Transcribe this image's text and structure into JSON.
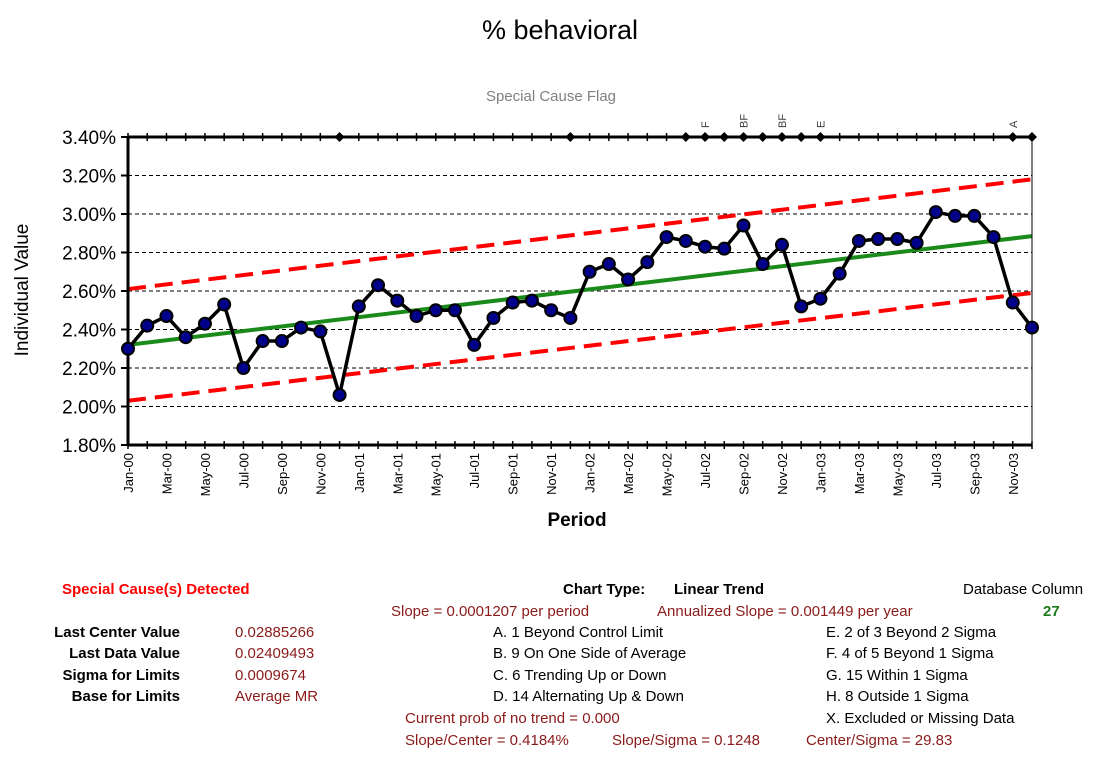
{
  "chart_data": {
    "type": "line",
    "title": "% behavioral",
    "subtitle": "Special Cause Flag",
    "xlabel": "Period",
    "ylabel": "Individual Value",
    "ylim": [
      0.018,
      0.034
    ],
    "y_ticks": [
      "1.80%",
      "2.00%",
      "2.20%",
      "2.40%",
      "2.60%",
      "2.80%",
      "3.00%",
      "3.20%",
      "3.40%"
    ],
    "y_tick_values": [
      0.018,
      0.02,
      0.022,
      0.024,
      0.026,
      0.028,
      0.03,
      0.032,
      0.034
    ],
    "grid": "horizontal-dashed",
    "x_labels": [
      "Jan-00",
      "Mar-00",
      "May-00",
      "Jul-00",
      "Sep-00",
      "Nov-00",
      "Jan-01",
      "Mar-01",
      "May-01",
      "Jul-01",
      "Sep-01",
      "Nov-01",
      "Jan-02",
      "Mar-02",
      "May-02",
      "Jul-02",
      "Sep-02",
      "Nov-02",
      "Jan-03",
      "Mar-03",
      "May-03",
      "Jul-03",
      "Sep-03",
      "Nov-03"
    ],
    "series": [
      {
        "name": "Individual Value",
        "color": "#000000",
        "marker_color": "#00008b",
        "values": [
          0.023,
          0.0242,
          0.0247,
          0.0236,
          0.0243,
          0.0253,
          0.022,
          0.0234,
          0.0234,
          0.0241,
          0.0239,
          0.0206,
          0.0252,
          0.0263,
          0.0255,
          0.0247,
          0.025,
          0.025,
          0.0232,
          0.0246,
          0.0254,
          0.0255,
          0.025,
          0.0246,
          0.027,
          0.0274,
          0.0266,
          0.0275,
          0.0288,
          0.0286,
          0.0283,
          0.0282,
          0.0294,
          0.0274,
          0.0284,
          0.0252,
          0.0256,
          0.0269,
          0.0286,
          0.0287,
          0.0287,
          0.0285,
          0.0301,
          0.0299,
          0.0299,
          0.0288,
          0.0254,
          0.0241
        ]
      }
    ],
    "center_line": {
      "color": "#1a8a1a",
      "start": 0.0232,
      "end": 0.02885
    },
    "upper_limit": {
      "color": "#ff0000",
      "start": 0.0261,
      "end": 0.0318
    },
    "lower_limit": {
      "color": "#ff0000",
      "start": 0.0203,
      "end": 0.0259
    },
    "flag_points": [
      11,
      23,
      29,
      30,
      31,
      32,
      33,
      34,
      35,
      36,
      46,
      47
    ],
    "flag_labels": [
      {
        "index": 30,
        "label": "F"
      },
      {
        "index": 32,
        "label": "BF"
      },
      {
        "index": 34,
        "label": "BF"
      },
      {
        "index": 36,
        "label": "E"
      },
      {
        "index": 46,
        "label": "A"
      }
    ]
  },
  "info": {
    "special_cause_detected": "Special Cause(s) Detected",
    "chart_type_label": "Chart Type:",
    "chart_type_value": "Linear Trend",
    "database_column_label": "Database Column",
    "database_column_value": "27",
    "slope": "Slope = 0.0001207 per period",
    "annualized_slope": "Annualized Slope = 0.001449 per year",
    "stats": [
      {
        "label": "Last Center Value",
        "value": "0.02885266"
      },
      {
        "label": "Last Data Value",
        "value": "0.02409493"
      },
      {
        "label": "Sigma for Limits",
        "value": "0.0009674"
      },
      {
        "label": "Base for Limits",
        "value": "Average MR"
      }
    ],
    "rules_left": [
      "A.  1 Beyond Control Limit",
      "B.  9 On One Side of Average",
      "C.  6 Trending Up or Down",
      "D.  14 Alternating  Up & Down"
    ],
    "rules_right": [
      "E.  2 of 3 Beyond 2 Sigma",
      "F.  4 of 5 Beyond 1 Sigma",
      "G.  15 Within 1 Sigma",
      "H.  8 Outside 1 Sigma",
      "X.  Excluded or Missing Data"
    ],
    "prob_no_trend": "Current prob of no trend = 0.000",
    "slope_center": "Slope/Center = 0.4184%",
    "slope_sigma": "Slope/Sigma = 0.1248",
    "center_sigma": "Center/Sigma = 29.83"
  }
}
